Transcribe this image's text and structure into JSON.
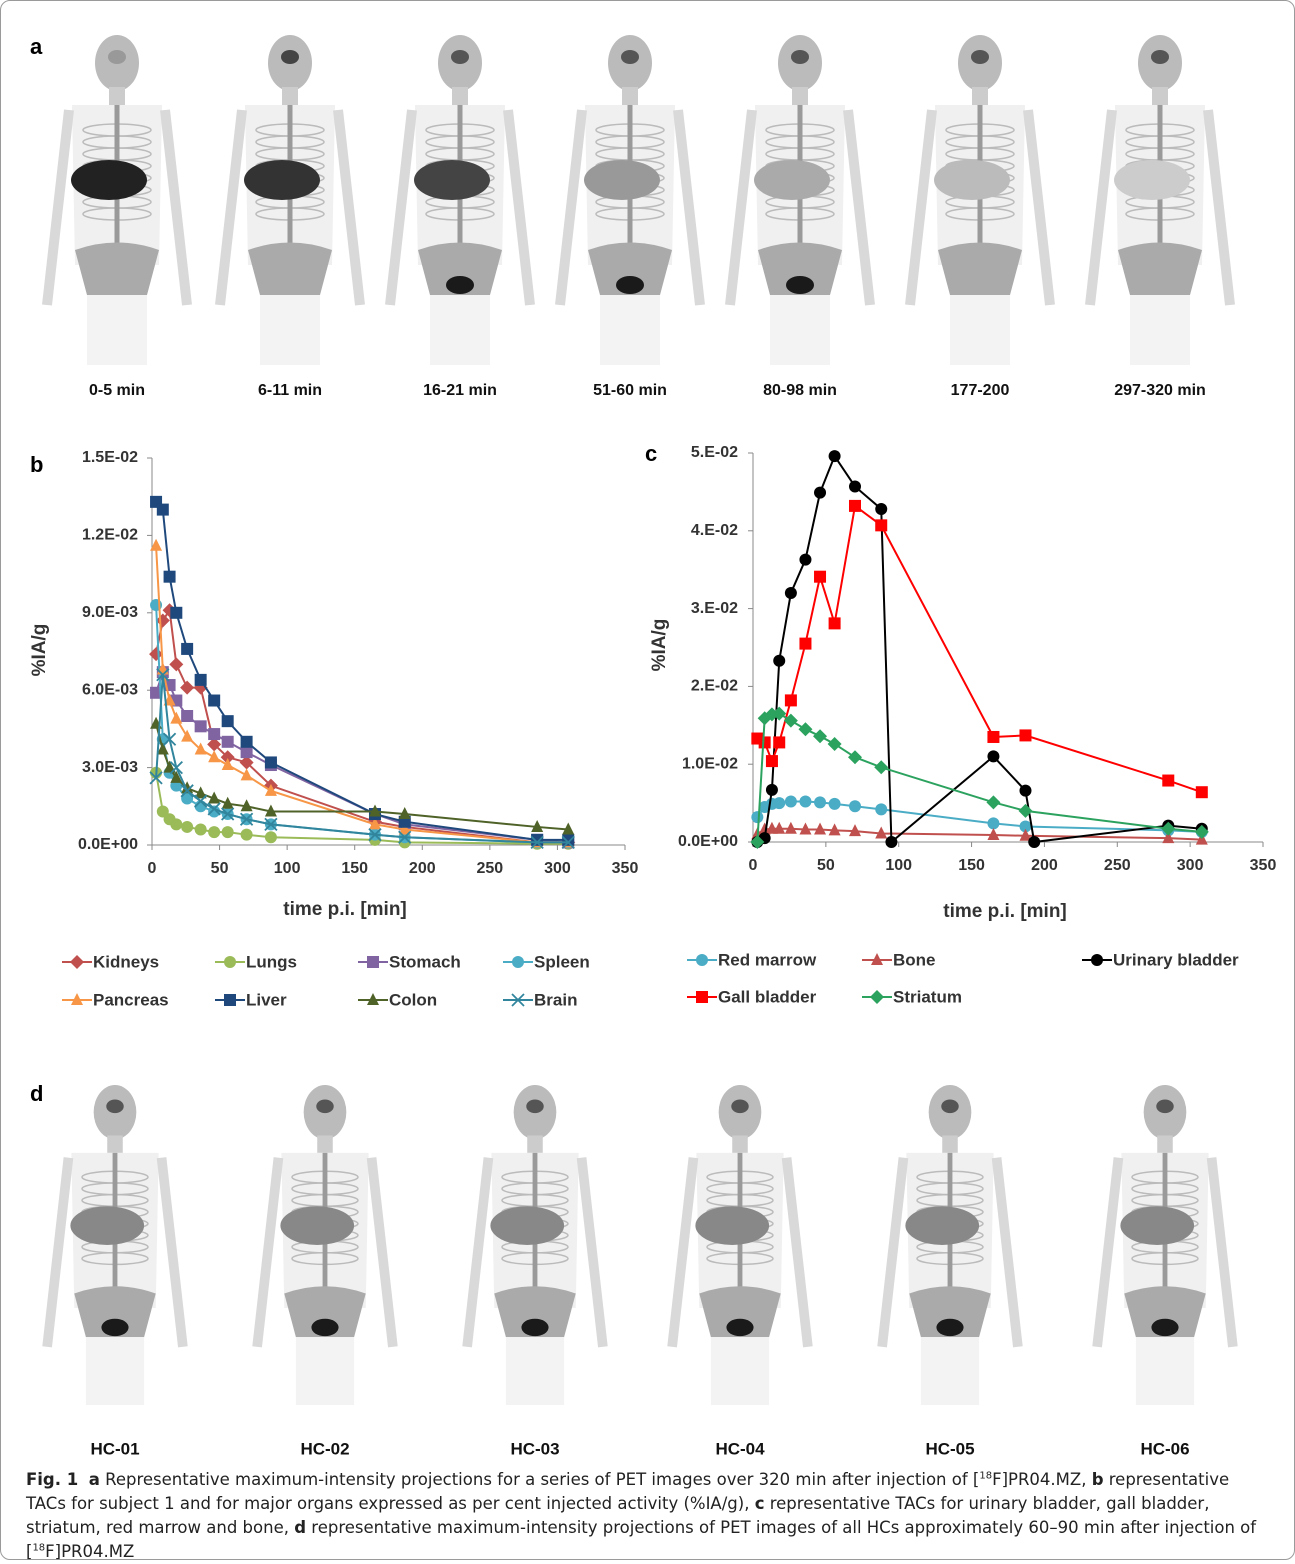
{
  "panel_labels": [
    "a",
    "b",
    "c",
    "d"
  ],
  "panel_a": {
    "times": [
      "0-5 min",
      "6-11 min",
      "16-21 min",
      "51-60 min",
      "80-98 min",
      "177-200",
      "297-320 min"
    ]
  },
  "chart_data": [
    {
      "type": "line",
      "x_label": "time p.i. [min]",
      "y_label": "%IA/g",
      "xlim": [
        0,
        350
      ],
      "xticks": [
        0,
        50,
        100,
        150,
        200,
        250,
        300,
        350
      ],
      "ylim": [
        0,
        0.015
      ],
      "yticks": [
        {
          "value": 0,
          "label": "0.0E+00"
        },
        {
          "value": 0.003,
          "label": "3.0E-03"
        },
        {
          "value": 0.006,
          "label": "6.0E-03"
        },
        {
          "value": 0.009,
          "label": "9.0E-03"
        },
        {
          "value": 0.012,
          "label": "1.2E-02"
        },
        {
          "value": 0.015,
          "label": "1.5E-02"
        }
      ],
      "grid": false,
      "x": [
        3,
        8,
        13,
        18,
        26,
        36,
        46,
        56,
        70,
        88,
        165,
        187,
        285,
        308
      ],
      "series": [
        {
          "name": "Kidneys",
          "color": "#c0504d",
          "marker": "diamond",
          "values": [
            0.0074,
            0.0087,
            0.0091,
            0.007,
            0.0061,
            0.0061,
            0.0039,
            0.0034,
            0.0032,
            0.0023,
            0.0009,
            0.0007,
            0.0001,
            0.0001
          ]
        },
        {
          "name": "Lungs",
          "color": "#9bbb59",
          "marker": "circle",
          "values": [
            0.0028,
            0.0013,
            0.001,
            0.0008,
            0.0007,
            0.0006,
            0.0005,
            0.0005,
            0.0004,
            0.0003,
            0.0002,
            0.0001,
            5e-05,
            5e-05
          ]
        },
        {
          "name": "Stomach",
          "color": "#8064a2",
          "marker": "square",
          "values": [
            0.0059,
            0.0067,
            0.0062,
            0.0056,
            0.005,
            0.0046,
            0.0043,
            0.004,
            0.0036,
            0.0031,
            0.0012,
            0.0008,
            0.0002,
            0.0001
          ]
        },
        {
          "name": "Spleen",
          "color": "#4bacc6",
          "marker": "circle",
          "values": [
            0.0093,
            0.0041,
            0.0028,
            0.0023,
            0.0018,
            0.0015,
            0.0013,
            0.0012,
            0.001,
            0.0008,
            0.0004,
            0.0003,
            0.0001,
            0.0001
          ]
        },
        {
          "name": "Pancreas",
          "color": "#f79646",
          "marker": "triangle",
          "values": [
            0.0116,
            0.0068,
            0.0056,
            0.0049,
            0.0042,
            0.0037,
            0.0034,
            0.0031,
            0.0027,
            0.0021,
            0.0008,
            0.0006,
            0.0001,
            0.0001
          ]
        },
        {
          "name": "Liver",
          "color": "#1f497d",
          "marker": "square",
          "values": [
            0.0133,
            0.013,
            0.0104,
            0.009,
            0.0076,
            0.0064,
            0.0056,
            0.0048,
            0.004,
            0.0032,
            0.0012,
            0.0009,
            0.0002,
            0.0002
          ]
        },
        {
          "name": "Colon",
          "color": "#4f6228",
          "marker": "triangle",
          "values": [
            0.0047,
            0.0037,
            0.003,
            0.0026,
            0.0022,
            0.002,
            0.0018,
            0.0016,
            0.0015,
            0.0013,
            0.0013,
            0.0012,
            0.0007,
            0.0006
          ]
        },
        {
          "name": "Brain",
          "color": "#31859c",
          "marker": "x",
          "values": [
            0.0026,
            0.0066,
            0.0041,
            0.003,
            0.0021,
            0.0017,
            0.0014,
            0.0012,
            0.001,
            0.0008,
            0.0004,
            0.0003,
            0.0001,
            0.0001
          ]
        }
      ]
    },
    {
      "type": "line",
      "x_label": "time p.i. [min]",
      "y_label": "%IA/g",
      "xlim": [
        0,
        350
      ],
      "xticks": [
        0,
        50,
        100,
        150,
        200,
        250,
        300,
        350
      ],
      "ylim": [
        0,
        0.05
      ],
      "yticks": [
        {
          "value": 0,
          "label": "0.0E+00"
        },
        {
          "value": 0.01,
          "label": "1.0E-02"
        },
        {
          "value": 0.02,
          "label": "2.E-02"
        },
        {
          "value": 0.03,
          "label": "3.E-02"
        },
        {
          "value": 0.04,
          "label": "4.E-02"
        },
        {
          "value": 0.05,
          "label": "5.E-02"
        }
      ],
      "grid": false,
      "x": [
        3,
        8,
        13,
        18,
        26,
        36,
        46,
        56,
        70,
        88,
        165,
        187,
        285,
        308
      ],
      "series": [
        {
          "name": "Red marrow",
          "color": "#4bacc6",
          "marker": "circle",
          "values": [
            0.0032,
            0.0045,
            0.0049,
            0.005,
            0.0052,
            0.0052,
            0.0051,
            0.0049,
            0.0046,
            0.0042,
            0.0024,
            0.002,
            0.0015,
            0.0013
          ]
        },
        {
          "name": "Bone",
          "color": "#c0504d",
          "marker": "triangle",
          "values": [
            0.001,
            0.0016,
            0.0017,
            0.0017,
            0.0017,
            0.0016,
            0.0016,
            0.0015,
            0.0014,
            0.0011,
            0.0009,
            0.0008,
            0.0005,
            0.0003
          ]
        },
        {
          "name": "Urinary bladder",
          "color": "#000000",
          "marker": "circle",
          "x": [
            3,
            8,
            13,
            18,
            26,
            36,
            46,
            56,
            70,
            88,
            95,
            165,
            187,
            193,
            285,
            308
          ],
          "values": [
            0,
            0.0005,
            0.0067,
            0.0233,
            0.032,
            0.0363,
            0.0449,
            0.0496,
            0.0457,
            0.0428,
            0,
            0.011,
            0.0066,
            0,
            0.0021,
            0.0017
          ]
        },
        {
          "name": "Gall bladder",
          "color": "#ff0000",
          "marker": "square",
          "values": [
            0.0133,
            0.0128,
            0.0104,
            0.0128,
            0.0182,
            0.0255,
            0.0341,
            0.0281,
            0.0432,
            0.0407,
            0.0135,
            0.0137,
            0.0079,
            0.0064
          ]
        },
        {
          "name": "Striatum",
          "color": "#2ca25f",
          "marker": "diamond",
          "values": [
            0,
            0.0159,
            0.0164,
            0.0165,
            0.0156,
            0.0145,
            0.0136,
            0.0126,
            0.0109,
            0.0096,
            0.0051,
            0.004,
            0.0017,
            0.0013
          ]
        }
      ]
    }
  ],
  "panel_d": {
    "subjects": [
      "HC-01",
      "HC-02",
      "HC-03",
      "HC-04",
      "HC-05",
      "HC-06"
    ]
  },
  "caption": {
    "segments": [
      "Fig. 1",
      "a",
      "Representative maximum-intensity projections for a series of PET images over 320 min after injection of [",
      "18",
      "F]PR04.MZ,",
      "b",
      "representative TACs for subject 1 and for major organs expressed as per cent injected activity (%IA/g),",
      "c",
      "representative TACs for urinary bladder, gall bladder, striatum, red marrow and bone,",
      "d",
      "representative maximum-intensity projections of PET images of all HCs approximately 60–90 min after injection of [",
      "18",
      "F]PR04.MZ"
    ]
  }
}
